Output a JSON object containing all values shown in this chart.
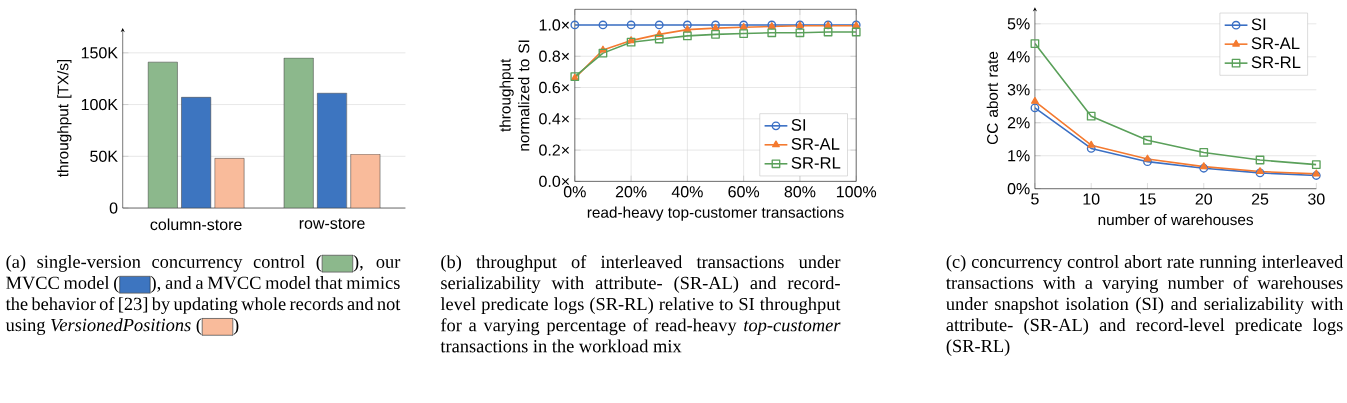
{
  "chart_data": [
    {
      "type": "bar",
      "categories": [
        "column-store",
        "row-store"
      ],
      "series": [
        {
          "color": "#8cb88c",
          "values": [
            141000,
            145000
          ]
        },
        {
          "color": "#3d75c0",
          "values": [
            107000,
            111000
          ]
        },
        {
          "color": "#f9bb9b",
          "values": [
            48000,
            52000
          ]
        }
      ],
      "ylabel": "throughput [TX/s]",
      "ylim": [
        0,
        174000
      ],
      "yticks": [
        0,
        {
          "value": 50000,
          "label": "50K"
        },
        {
          "value": 100000,
          "label": "100K"
        },
        {
          "value": 150000,
          "label": "150K"
        }
      ],
      "grid": "y",
      "annotations": [
        "(a) single-version concurrency control (",
        "), our MVCC model (",
        "), and a MVCC model that mimics the behavior of [23] by updating whole records and not using *VersionedPositions* (",
        ")"
      ]
    },
    {
      "type": "line",
      "x": [
        0,
        10,
        20,
        30,
        40,
        50,
        60,
        70,
        80,
        90,
        100
      ],
      "series": [
        {
          "name": "SI",
          "color": "#3a6fc4",
          "marker": "circle",
          "values": [
            1.0,
            1.0,
            1.0,
            1.0,
            1.0,
            1.0,
            1.0,
            1.0,
            1.0,
            1.0,
            1.0
          ]
        },
        {
          "name": "SR-AL",
          "color": "#f47a30",
          "marker": "triangle",
          "values": [
            0.66,
            0.84,
            0.9,
            0.94,
            0.97,
            0.98,
            0.985,
            0.99,
            0.995,
            0.995,
            0.995
          ]
        },
        {
          "name": "SR-RL",
          "color": "#5aa05a",
          "marker": "square",
          "values": [
            0.67,
            0.82,
            0.89,
            0.91,
            0.93,
            0.94,
            0.945,
            0.95,
            0.95,
            0.955,
            0.955
          ]
        }
      ],
      "xlabel": "read-heavy top-customer transactions",
      "ylabel": "throughput normalized to SI",
      "xlim": [
        0,
        100
      ],
      "ylim": [
        0,
        1.1
      ],
      "xticks": [
        {
          "value": 0,
          "label": "0%"
        },
        {
          "value": 20,
          "label": "20%"
        },
        {
          "value": 40,
          "label": "40%"
        },
        {
          "value": 60,
          "label": "60%"
        },
        {
          "value": 80,
          "label": "80%"
        },
        {
          "value": 100,
          "label": "100%"
        }
      ],
      "yticks": [
        {
          "value": 0,
          "label": "0.0×"
        },
        {
          "value": 0.2,
          "label": "0.2×"
        },
        {
          "value": 0.4,
          "label": "0.4×"
        },
        {
          "value": 0.6,
          "label": "0.6×"
        },
        {
          "value": 0.8,
          "label": "0.8×"
        },
        {
          "value": 1.0,
          "label": "1.0×"
        }
      ],
      "grid": true,
      "legend": "bottom right",
      "annotations": [
        "(b) throughput of interleaved transactions under serializability with attribute- (SR-AL) and record-level predicate logs (SR-RL) relative to SI throughput for a varying percentage of read-heavy *top-customer* transactions in the workload mix"
      ]
    },
    {
      "type": "line",
      "x": [
        5,
        10,
        15,
        20,
        25,
        30
      ],
      "series": [
        {
          "name": "SI",
          "color": "#3a6fc4",
          "marker": "circle",
          "values": [
            2.45,
            1.22,
            0.82,
            0.62,
            0.48,
            0.4
          ]
        },
        {
          "name": "SR-AL",
          "color": "#f47a30",
          "marker": "triangle",
          "values": [
            2.65,
            1.32,
            0.9,
            0.67,
            0.52,
            0.45
          ]
        },
        {
          "name": "SR-RL",
          "color": "#5aa05a",
          "marker": "square",
          "values": [
            4.4,
            2.2,
            1.47,
            1.1,
            0.87,
            0.73
          ]
        }
      ],
      "xlabel": "number of warehouses",
      "ylabel": "CC abort rate",
      "xlim": [
        5,
        30
      ],
      "ylim": [
        0,
        5.5
      ],
      "xticks": [
        5,
        10,
        15,
        20,
        25,
        30
      ],
      "yticks": [
        {
          "value": 0,
          "label": "0%"
        },
        {
          "value": 1,
          "label": "1%"
        },
        {
          "value": 2,
          "label": "2%"
        },
        {
          "value": 3,
          "label": "3%"
        },
        {
          "value": 4,
          "label": "4%"
        },
        {
          "value": 5,
          "label": "5%"
        }
      ],
      "grid": "y",
      "legend": "top right",
      "annotations": [
        "(c) concurrency control abort rate running interleaved transactions with a varying number of warehouses under snapshot isolation (SI) and serializability with attribute- (SR-AL) and record-level predicate logs (SR-RL)"
      ]
    }
  ]
}
